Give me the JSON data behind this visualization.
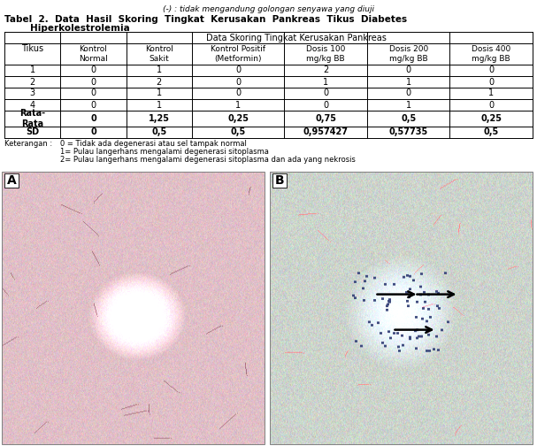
{
  "top_note": "(-) : tidak mengandung golongan senyawa yang diuji",
  "title_line1": "Tabel  2.  Data  Hasil  Skoring  Tingkat  Kerusakan  Pankreas  Tikus  Diabetes",
  "title_line2": "        Hiperkolestrolemia",
  "header_span": "Data Skoring Tingkat Kerusakan Pankreas",
  "col_headers": [
    "Kontrol\nNormal",
    "Kontrol\nSakit",
    "Kontrol Positif\n(Metformin)",
    "Dosis 100\nmg/kg BB",
    "Dosis 200\nmg/kg BB",
    "Dosis 400\nmg/kg BB"
  ],
  "row_label": "Tikus",
  "rows": [
    [
      "1",
      "0",
      "1",
      "0",
      "2",
      "0",
      "0"
    ],
    [
      "2",
      "0",
      "2",
      "0",
      "1",
      "1",
      "0"
    ],
    [
      "3",
      "0",
      "1",
      "0",
      "0",
      "0",
      "1"
    ],
    [
      "4",
      "0",
      "1",
      "1",
      "0",
      "1",
      "0"
    ]
  ],
  "rata_row": [
    "Rata-\nRata",
    "0",
    "1,25",
    "0,25",
    "0,75",
    "0,5",
    "0,25"
  ],
  "sd_row": [
    "SD",
    "0",
    "0,5",
    "0,5",
    "0,957427",
    "0,57735",
    "0,5"
  ],
  "keterangan_label": "Keterangan :",
  "keterangan_lines": [
    "0 = Tidak ada degenerasi atau sel tampak normal",
    "1= Pulau langerhans mengalami degenerasi sitoplasma",
    "2= Pulau langerhans mengalami degenerasi sitoplasma dan ada yang nekrosis"
  ],
  "bg_color": "#ffffff",
  "font_size_note": 6.5,
  "font_size_title": 7.5,
  "font_size_table": 7.0,
  "font_size_keterangan": 6.0
}
